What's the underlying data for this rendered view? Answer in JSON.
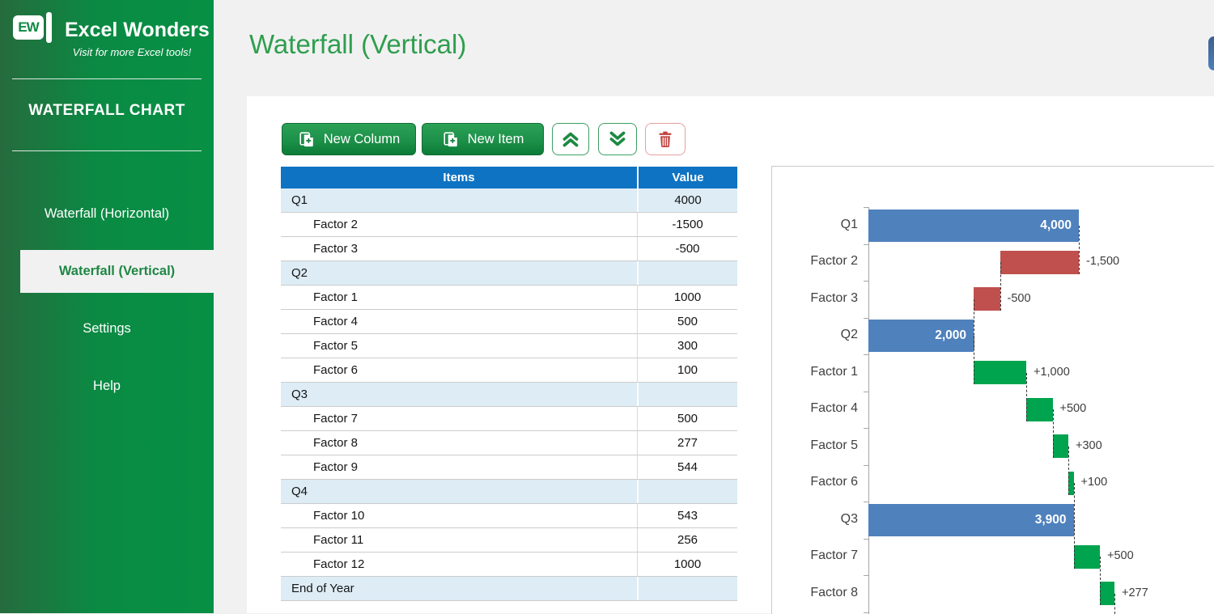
{
  "sidebar": {
    "logo_monogram": "EW",
    "logo_title": "Excel Wonders",
    "logo_tagline": "Visit for more Excel tools!",
    "section_title": "WATERFALL CHART",
    "items": [
      {
        "label": "Waterfall (Horizontal)",
        "active": false
      },
      {
        "label": "Waterfall (Vertical)",
        "active": true
      },
      {
        "label": "Settings",
        "active": false
      },
      {
        "label": "Help",
        "active": false
      }
    ]
  },
  "header": {
    "title": "Waterfall (Vertical)"
  },
  "toolbar": {
    "new_column_label": "New Column",
    "new_item_label": "New Item",
    "icons": [
      "new-document-plus-icon",
      "new-document-plus-icon",
      "double-chevron-up-icon",
      "double-chevron-down-icon",
      "trash-icon"
    ]
  },
  "table": {
    "headers": [
      "Items",
      "Value"
    ],
    "rows": [
      {
        "item": "Q1",
        "value": "4000",
        "group": true
      },
      {
        "item": "Factor 2",
        "value": "-1500",
        "group": false
      },
      {
        "item": "Factor 3",
        "value": "-500",
        "group": false
      },
      {
        "item": "Q2",
        "value": "",
        "group": true
      },
      {
        "item": "Factor 1",
        "value": "1000",
        "group": false
      },
      {
        "item": "Factor 4",
        "value": "500",
        "group": false
      },
      {
        "item": "Factor 5",
        "value": "300",
        "group": false
      },
      {
        "item": "Factor 6",
        "value": "100",
        "group": false
      },
      {
        "item": "Q3",
        "value": "",
        "group": true
      },
      {
        "item": "Factor 7",
        "value": "500",
        "group": false
      },
      {
        "item": "Factor 8",
        "value": "277",
        "group": false
      },
      {
        "item": "Factor 9",
        "value": "544",
        "group": false
      },
      {
        "item": "Q4",
        "value": "",
        "group": true
      },
      {
        "item": "Factor 10",
        "value": "543",
        "group": false
      },
      {
        "item": "Factor 11",
        "value": "256",
        "group": false
      },
      {
        "item": "Factor 12",
        "value": "1000",
        "group": false
      },
      {
        "item": "End of Year",
        "value": "",
        "group": true
      }
    ]
  },
  "chart_data": {
    "type": "bar",
    "subtype": "waterfall",
    "orientation": "horizontal-bars",
    "title": "",
    "categories": [
      "Q1",
      "Factor 2",
      "Factor 3",
      "Q2",
      "Factor 1",
      "Factor 4",
      "Factor 5",
      "Factor 6",
      "Q3",
      "Factor 7",
      "Factor 8"
    ],
    "bars": [
      {
        "category": "Q1",
        "kind": "total",
        "value": 4000,
        "start": 0,
        "end": 4000,
        "label": "4,000"
      },
      {
        "category": "Factor 2",
        "kind": "negative",
        "value": -1500,
        "start": 4000,
        "end": 2500,
        "label": "-1,500"
      },
      {
        "category": "Factor 3",
        "kind": "negative",
        "value": -500,
        "start": 2500,
        "end": 2000,
        "label": "-500"
      },
      {
        "category": "Q2",
        "kind": "total",
        "value": 2000,
        "start": 0,
        "end": 2000,
        "label": "2,000"
      },
      {
        "category": "Factor 1",
        "kind": "positive",
        "value": 1000,
        "start": 2000,
        "end": 3000,
        "label": "+1,000"
      },
      {
        "category": "Factor 4",
        "kind": "positive",
        "value": 500,
        "start": 3000,
        "end": 3500,
        "label": "+500"
      },
      {
        "category": "Factor 5",
        "kind": "positive",
        "value": 300,
        "start": 3500,
        "end": 3800,
        "label": "+300"
      },
      {
        "category": "Factor 6",
        "kind": "positive",
        "value": 100,
        "start": 3800,
        "end": 3900,
        "label": "+100"
      },
      {
        "category": "Q3",
        "kind": "total",
        "value": 3900,
        "start": 0,
        "end": 3900,
        "label": "3,900"
      },
      {
        "category": "Factor 7",
        "kind": "positive",
        "value": 500,
        "start": 3900,
        "end": 4400,
        "label": "+500"
      },
      {
        "category": "Factor 8",
        "kind": "positive",
        "value": 277,
        "start": 4400,
        "end": 4677,
        "label": "+277"
      }
    ],
    "xlim": [
      0,
      4800
    ],
    "gridlines": false,
    "legend": "none",
    "bar_colors": {
      "total": "#4f81bd",
      "negative": "#c0504d",
      "positive": "#00a44e"
    },
    "axis_color": "#a6a6a6",
    "connector_style": "dashed"
  },
  "colors": {
    "sidebar_green": "#0a8a43",
    "accent_green": "#1e8743",
    "title_green": "#2f9e4e",
    "table_header_blue": "#0e73c2",
    "group_row_blue": "#ddecf5",
    "edge_tab_blue": "#4d80ba"
  }
}
